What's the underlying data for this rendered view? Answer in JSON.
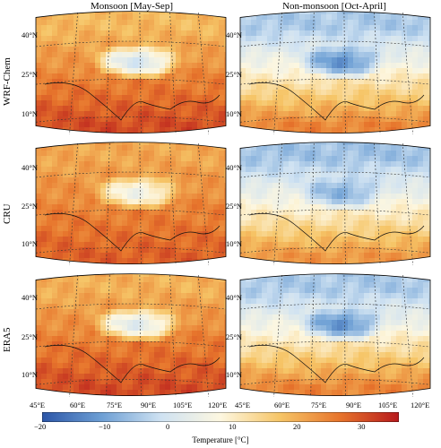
{
  "chart_data": {
    "type": "heatmap",
    "columns": [
      "Monsoon [May-Sep]",
      "Non-monsoon [Oct-April]"
    ],
    "rows": [
      "WRF-Chem",
      "CRU",
      "ERA5"
    ],
    "lat_ticks": [
      "10°N",
      "25°N",
      "40°N"
    ],
    "lon_ticks": [
      "45°E",
      "60°E",
      "75°E",
      "90°E",
      "105°E",
      "120°E"
    ],
    "colorbar": {
      "label": "Temperature [°C]",
      "range": [
        -20,
        35
      ],
      "ticks": [
        "−20",
        "−10",
        "0",
        "10",
        "20",
        "30"
      ],
      "colormap": [
        "#2c56a8",
        "#6d9fd4",
        "#cfe2f2",
        "#fdf7e0",
        "#f6c567",
        "#e7752c",
        "#b7191c"
      ]
    },
    "panels": [
      {
        "row": "WRF-Chem",
        "column": "Monsoon [May-Sep]",
        "mean_temp_south": 30,
        "mean_temp_north": 18,
        "plateau_temp": 0
      },
      {
        "row": "WRF-Chem",
        "column": "Non-monsoon [Oct-April]",
        "mean_temp_south": 24,
        "mean_temp_north": -5,
        "plateau_temp": -12
      },
      {
        "row": "CRU",
        "column": "Monsoon [May-Sep]",
        "mean_temp_south": 28,
        "mean_temp_north": 20,
        "plateau_temp": 5
      },
      {
        "row": "CRU",
        "column": "Non-monsoon [Oct-April]",
        "mean_temp_south": 22,
        "mean_temp_north": -6,
        "plateau_temp": -8
      },
      {
        "row": "ERA5",
        "column": "Monsoon [May-Sep]",
        "mean_temp_south": 30,
        "mean_temp_north": 19,
        "plateau_temp": 2
      },
      {
        "row": "ERA5",
        "column": "Non-monsoon [Oct-April]",
        "mean_temp_south": 24,
        "mean_temp_north": -5,
        "plateau_temp": -12
      }
    ]
  }
}
